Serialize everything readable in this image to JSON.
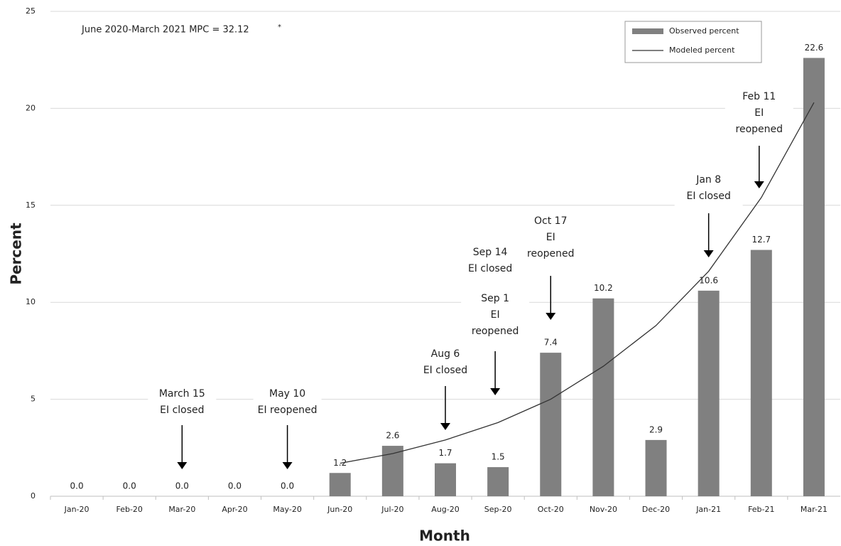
{
  "chart_data": {
    "type": "bar",
    "annotation": "June 2020-March 2021 MPC  = 32.12",
    "annotation_mark": "*",
    "x_label": "Month",
    "y_label": "Percent",
    "categories": [
      "Jan-20",
      "Feb-20",
      "Mar-20",
      "Apr-20",
      "May-20",
      "Jun-20",
      "Jul-20",
      "Aug-20",
      "Sep-20",
      "Oct-20",
      "Nov-20",
      "Dec-20",
      "Jan-21",
      "Feb-21",
      "Mar-21"
    ],
    "series": [
      {
        "name": "Observed percent",
        "type": "bar",
        "color": "#808080",
        "values": [
          0,
          0,
          0,
          0,
          0,
          1.2,
          2.6,
          1.7,
          1.5,
          7.4,
          10.2,
          2.9,
          10.6,
          12.7,
          22.6
        ],
        "value_labels": [
          "0.0",
          "0.0",
          "0.0",
          "0.0",
          "0.0",
          "1.2",
          "2.6",
          "1.7",
          "1.5",
          "7.4",
          "10.2",
          "2.9",
          "10.6",
          "12.7",
          "22.6"
        ]
      },
      {
        "name": "Modeled percent",
        "type": "line",
        "color": "#333333",
        "values": [
          null,
          null,
          null,
          null,
          null,
          1.7,
          2.2,
          2.9,
          3.8,
          5.0,
          6.7,
          8.8,
          11.6,
          15.4,
          20.3
        ]
      }
    ],
    "ylim": [
      0,
      25
    ],
    "yticks": [
      0,
      5,
      10,
      15,
      20,
      25
    ],
    "grid": true,
    "legend": "top-right",
    "annotations": [
      [
        "March 15",
        "EI closed"
      ],
      [
        "May 10",
        "EI reopened"
      ],
      [
        "Aug 6",
        "EI closed"
      ],
      [
        "Sep 1",
        "EI",
        "reopened"
      ],
      [
        "Sep 14",
        "EI closed"
      ],
      [
        "Oct 17",
        "EI",
        "reopened"
      ],
      [
        "Jan 8",
        "EI closed"
      ],
      [
        "Feb 11",
        "EI",
        "reopened"
      ]
    ]
  }
}
